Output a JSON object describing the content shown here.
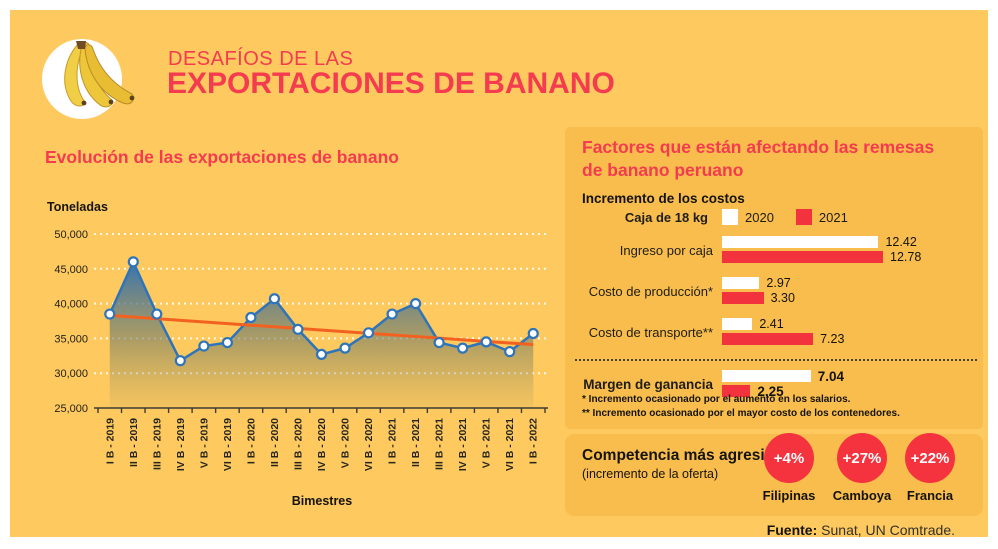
{
  "header": {
    "title_line1": "DESAFÍOS DE LAS",
    "title_line2": "EXPORTACIONES DE BANANO",
    "logo": "bananas-photo-in-white-circle"
  },
  "colors": {
    "canvas_orange": "#FEC95F",
    "panel_orange": "#F9BD4D",
    "title_red": "#F43B4F",
    "bar_red": "#F2333D",
    "circle_red": "#F4333F",
    "line_blue": "#2E74BA",
    "trend_orange": "#F2611F",
    "bar_2020_white": "#FFFFFF"
  },
  "right_section": {
    "title_line1": "Factores que están afectando las remesas",
    "title_line2": "de banano peruano",
    "footnotes": [
      "* Incremento ocasionado por el aumento en los salarios.",
      "** Incremento ocasionado por el mayor costo de los contenedores."
    ],
    "competition": {
      "title": "Competencia más agresiva",
      "subtitle": "(incremento de la oferta)",
      "items": [
        {
          "pct": "+4%",
          "country": "Filipinas"
        },
        {
          "pct": "+27%",
          "country": "Camboya"
        },
        {
          "pct": "+22%",
          "country": "Francia"
        }
      ]
    }
  },
  "footer": {
    "label": "Fuente:",
    "text": "Sunat, UN Comtrade."
  },
  "chart_data": [
    {
      "type": "line",
      "title": "Evolución de las exportaciones de banano",
      "ylabel": "Toneladas",
      "xlabel": "Bimestres",
      "ylim": [
        25000,
        50000
      ],
      "ytick_labels": [
        "25,000",
        "30,000",
        "35,000",
        "40,000",
        "45,000",
        "50,000"
      ],
      "grid": true,
      "area": true,
      "categories": [
        "I B - 2019",
        "II B - 2019",
        "III B - 2019",
        "IV B - 2019",
        "V B - 2019",
        "VI B - 2019",
        "I B - 2020",
        "II B - 2020",
        "III B - 2020",
        "IV B - 2020",
        "V B - 2020",
        "VI B - 2020",
        "I B - 2021",
        "II B - 2021",
        "III B - 2021",
        "IV B - 2021",
        "V B - 2021",
        "VI B - 2021",
        "I B - 2022"
      ],
      "values": [
        38500,
        46000,
        38500,
        31800,
        33900,
        34400,
        38000,
        40700,
        36300,
        32700,
        33600,
        35800,
        38500,
        40000,
        34400,
        33600,
        34500,
        33100,
        35700
      ],
      "trendline": {
        "start": 38300,
        "end": 34100,
        "color": "#F2611F"
      }
    },
    {
      "type": "bar",
      "orientation": "horizontal",
      "title": "Incremento de los costos",
      "unit_label": "Caja de 18 kg",
      "categories": [
        "Ingreso por caja",
        "Costo de producción*",
        "Costo de transporte**",
        "Margen de ganancia"
      ],
      "series": [
        {
          "name": "2020",
          "color": "#FFFFFF",
          "values": [
            12.42,
            2.97,
            2.41,
            7.04
          ]
        },
        {
          "name": "2021",
          "color": "#F2333D",
          "values": [
            12.78,
            3.3,
            7.23,
            2.25
          ]
        }
      ],
      "value_labels": [
        [
          "12.42",
          "2.97",
          "2.41",
          "7.04"
        ],
        [
          "12.78",
          "3.30",
          "7.23",
          "2.25"
        ]
      ],
      "xmax": 13.5,
      "separator_before": "Margen de ganancia",
      "bold_category": "Margen de ganancia"
    }
  ]
}
